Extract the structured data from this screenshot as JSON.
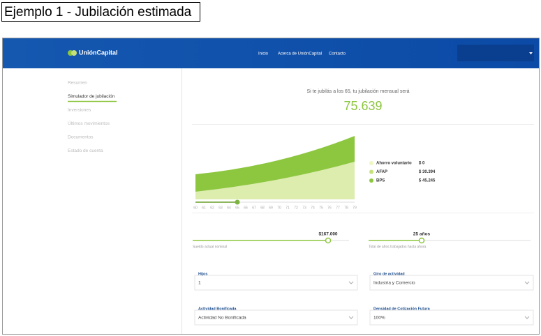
{
  "caption": "Ejemplo 1 - Jubilación estimada",
  "header": {
    "logo": "UniónCapital",
    "nav": [
      "Inicio",
      "Acerca de UniónCapital",
      "Contacto"
    ]
  },
  "sidebar": {
    "items": [
      "Resumen",
      "Simulador de jubilación",
      "Inversiones",
      "Últimos movimientos",
      "Documentos",
      "Estado de cuenta"
    ]
  },
  "summary": {
    "text": "Si te jubilás a los 65, tu jubilación mensual será",
    "amount": "75.639"
  },
  "chart": {
    "ages": [
      60,
      61,
      62,
      63,
      64,
      65,
      66,
      67,
      68,
      69,
      70,
      71,
      72,
      73,
      74,
      75,
      76,
      77,
      78,
      79
    ],
    "legend": [
      {
        "label": "Ahorro voluntario",
        "amount": "$ 0"
      },
      {
        "label": "AFAP",
        "amount": "$ 30.394"
      },
      {
        "label": "BPS",
        "amount": "$ 45.245"
      }
    ]
  },
  "sliders": [
    {
      "value": "$167.000",
      "label": "Sueldo actual nominal"
    },
    {
      "value": "25 años",
      "label": "Total de años trabajados hasta ahora"
    }
  ],
  "fields": [
    {
      "label": "Hijos",
      "value": "1"
    },
    {
      "label": "Giro de actividad",
      "value": "Industria y Comercio"
    },
    {
      "label": "Actividad Bonificada",
      "value": "Actividad No Bonificada"
    },
    {
      "label": "Densidad de Cotización Futura",
      "value": "100%"
    }
  ]
}
